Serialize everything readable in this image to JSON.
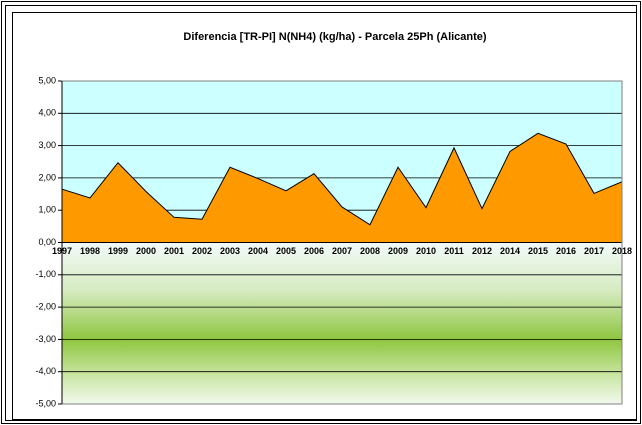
{
  "chart_data": {
    "type": "area",
    "title": "Diferencia [TR-PI] N(NH4) (kg/ha) - Parcela 25Ph (Alicante)",
    "categories": [
      "1997",
      "1998",
      "1999",
      "2000",
      "2001",
      "2002",
      "2003",
      "2004",
      "2005",
      "2006",
      "2007",
      "2008",
      "2009",
      "2010",
      "2011",
      "2012",
      "2014",
      "2015",
      "2016",
      "2017",
      "2018"
    ],
    "series": [
      {
        "name": "Diferencia",
        "color": "#ff9900",
        "values": [
          1.65,
          1.38,
          2.47,
          1.58,
          0.78,
          0.72,
          2.33,
          1.98,
          1.6,
          2.13,
          1.1,
          0.55,
          2.33,
          1.08,
          2.93,
          1.05,
          2.82,
          3.38,
          3.05,
          1.52,
          1.88
        ]
      }
    ],
    "ylim": [
      -5,
      5
    ],
    "yticks": [
      {
        "value": -5,
        "label": "-5,00"
      },
      {
        "value": -4,
        "label": "-4,00"
      },
      {
        "value": -3,
        "label": "-3,00"
      },
      {
        "value": -2,
        "label": "-2,00"
      },
      {
        "value": -1,
        "label": "-1,00"
      },
      {
        "value": 0,
        "label": "0,00"
      },
      {
        "value": 1,
        "label": "1,00"
      },
      {
        "value": 2,
        "label": "2,00"
      },
      {
        "value": 3,
        "label": "3,00"
      },
      {
        "value": 4,
        "label": "4,00"
      },
      {
        "value": 5,
        "label": "5,00"
      }
    ],
    "grid": true
  }
}
